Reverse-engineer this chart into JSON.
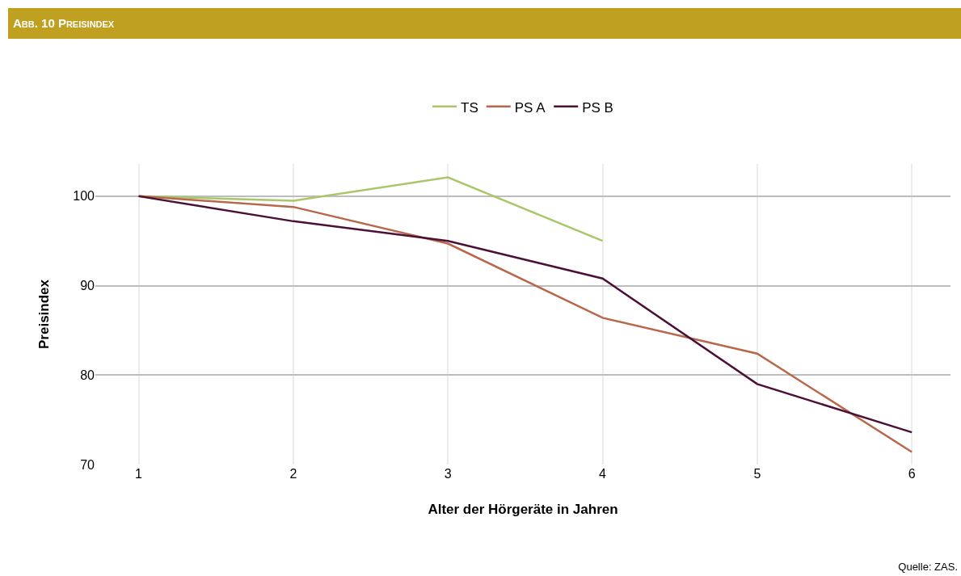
{
  "chart_data": {
    "type": "line",
    "title": "Abb. 10 Preisindex",
    "xlabel": "Alter der Hörgeräte in Jahren",
    "ylabel": "Preisindex",
    "x": [
      1,
      2,
      3,
      4,
      5,
      6
    ],
    "series": [
      {
        "name": "TS",
        "color": "#a9c66b",
        "values": [
          100,
          99.5,
          102.1,
          95.0,
          null,
          null
        ]
      },
      {
        "name": "PS A",
        "color": "#b8674a",
        "values": [
          100,
          98.8,
          94.7,
          86.4,
          82.4,
          71.4
        ]
      },
      {
        "name": "PS B",
        "color": "#4a1036",
        "values": [
          100,
          97.2,
          95.0,
          90.8,
          79.0,
          73.6
        ]
      }
    ],
    "xlim": [
      0.72,
      6.25
    ],
    "xticks": [
      1,
      2,
      3,
      4,
      5,
      6
    ],
    "ylim": [
      70,
      103.6
    ],
    "yticks": [
      70,
      80,
      90,
      100
    ],
    "grid": true,
    "legend": "top",
    "marker": "none",
    "line_style": "solid",
    "annotations": [
      "Quelle: ZAS."
    ]
  }
}
